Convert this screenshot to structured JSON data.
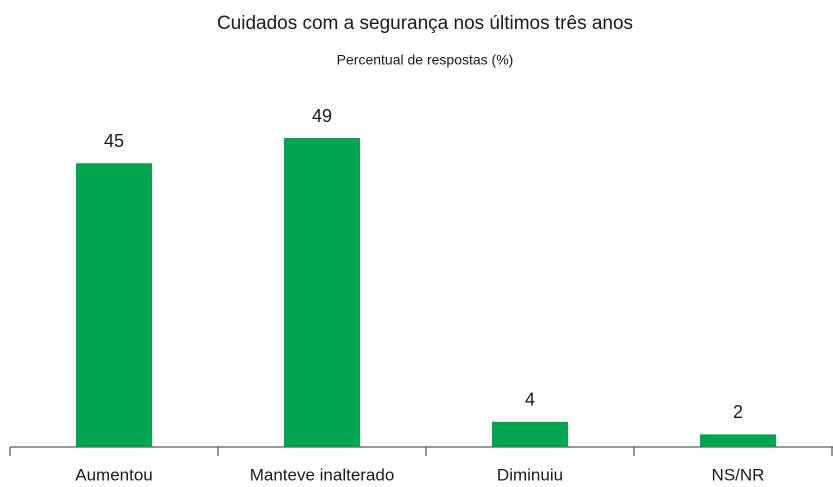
{
  "chart_data": {
    "type": "bar",
    "title": "Cuidados com a segurança nos últimos três anos",
    "subtitle": "Percentual de respostas (%)",
    "categories": [
      "Aumentou",
      "Manteve inalterado",
      "Diminuiu",
      "NS/NR"
    ],
    "values": [
      45,
      49,
      4,
      2
    ],
    "color": "#00a54f"
  }
}
